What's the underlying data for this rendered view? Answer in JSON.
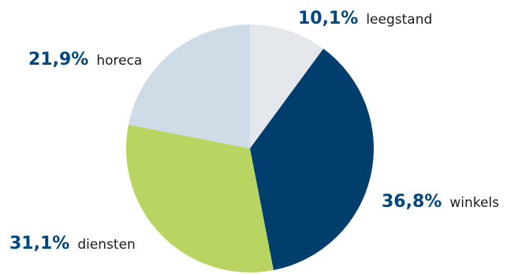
{
  "chart_data": {
    "type": "pie",
    "slices": [
      {
        "label": "leegstand",
        "value": 10.1,
        "value_text": "10,1%",
        "color": "#e4e8ec"
      },
      {
        "label": "winkels",
        "value": 36.8,
        "value_text": "36,8%",
        "color": "#003f6d"
      },
      {
        "label": "diensten",
        "value": 31.1,
        "value_text": "31,1%",
        "color": "#bad462"
      },
      {
        "label": "horeca",
        "value": 21.9,
        "value_text": "21,9%",
        "color": "#cddce7"
      }
    ],
    "start_angle": "12 o'clock",
    "direction": "clockwise",
    "label_color": "#00467f"
  }
}
